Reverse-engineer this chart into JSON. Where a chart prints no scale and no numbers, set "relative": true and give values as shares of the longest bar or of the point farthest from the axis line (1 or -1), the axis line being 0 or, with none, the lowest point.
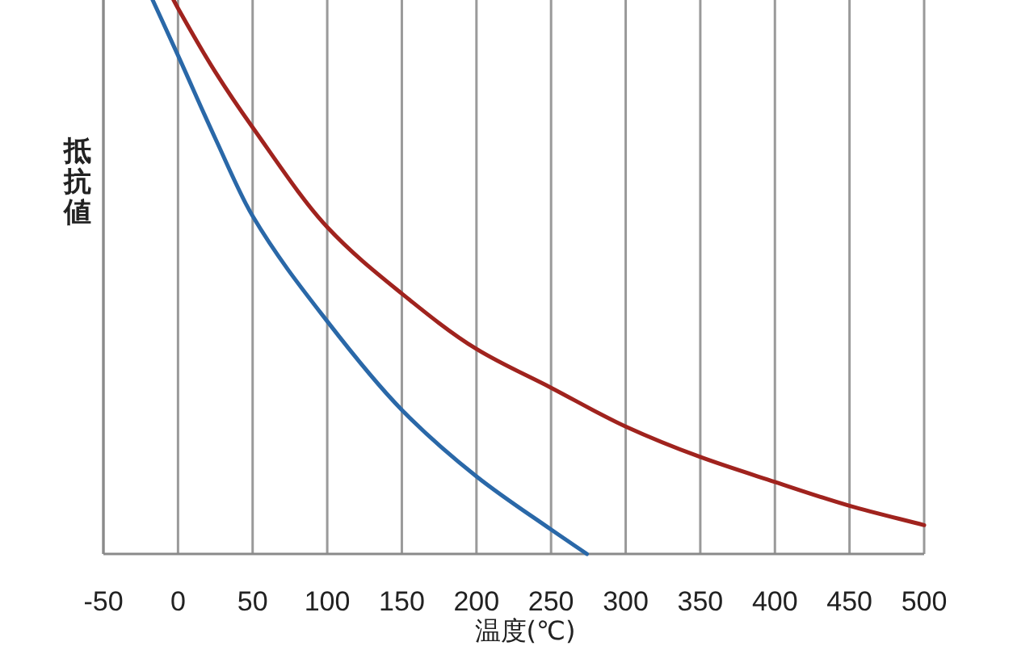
{
  "chart_data": {
    "type": "line",
    "xlabel": "温度(℃)",
    "ylabel": "抵抗値",
    "relative": true,
    "xlim": [
      -50,
      500
    ],
    "xticks": [
      -50,
      0,
      50,
      100,
      150,
      200,
      250,
      300,
      350,
      400,
      450,
      500
    ],
    "grid": "x",
    "tick_labels": "x",
    "series": [
      {
        "color": "#a0231e",
        "x": [
          -3,
          0,
          25,
          50,
          100,
          150,
          200,
          250,
          300,
          350,
          400,
          450,
          500
        ],
        "values": [
          1.0,
          0.985,
          0.87,
          0.77,
          0.59,
          0.47,
          0.37,
          0.3,
          0.23,
          0.175,
          0.13,
          0.087,
          0.052
        ]
      },
      {
        "color": "#2a68a8",
        "x": [
          -17,
          0,
          25,
          50,
          100,
          150,
          200,
          250,
          274
        ],
        "values": [
          1.0,
          0.9,
          0.75,
          0.61,
          0.42,
          0.26,
          0.14,
          0.044,
          0
        ]
      }
    ]
  }
}
